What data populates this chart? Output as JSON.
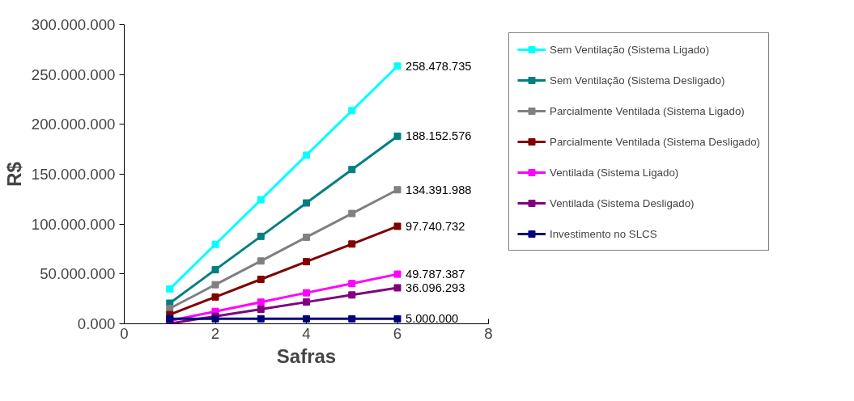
{
  "chart_data": {
    "type": "line",
    "xlabel": "Safras",
    "ylabel": "R$",
    "x": [
      1,
      2,
      3,
      4,
      5,
      6
    ],
    "xlim": [
      0,
      8
    ],
    "xticks": [
      0,
      2,
      4,
      6,
      8
    ],
    "ylim": [
      0,
      300000000
    ],
    "yticks": [
      {
        "value": 0,
        "label": "0.000"
      },
      {
        "value": 50000000,
        "label": "50.000.000"
      },
      {
        "value": 100000000,
        "label": "100.000.000"
      },
      {
        "value": 150000000,
        "label": "150.000.000"
      },
      {
        "value": 200000000,
        "label": "200.000.000"
      },
      {
        "value": 250000000,
        "label": "250.000.000"
      },
      {
        "value": 300000000,
        "label": "300.000.000"
      }
    ],
    "grid": false,
    "legend": "right",
    "marker": "square",
    "line_style": "solid",
    "series": [
      {
        "name": "Sem Ventilação (Sistema Ligado)",
        "color": "#00ffff",
        "values": [
          35000000,
          79700000,
          124400000,
          169100000,
          213800000,
          258478735
        ],
        "value_labels": [
          null,
          null,
          null,
          null,
          null,
          "258.478.735"
        ]
      },
      {
        "name": "Sem Ventilação (Sistema Desligado)",
        "color": "#008080",
        "values": [
          20700000,
          54200000,
          87700000,
          121200000,
          154700000,
          188152576
        ],
        "value_labels": [
          null,
          null,
          null,
          null,
          null,
          "188.152.576"
        ]
      },
      {
        "name": "Parcialmente Ventilada (Sistema Ligado)",
        "color": "#808080",
        "values": [
          15400000,
          39200000,
          63000000,
          86800000,
          110600000,
          134391988
        ],
        "value_labels": [
          null,
          null,
          null,
          null,
          null,
          "134.391.988"
        ]
      },
      {
        "name": "Parcialmente Ventilada (Sistema Desligado)",
        "color": "#800000",
        "values": [
          9200000,
          26900000,
          44600000,
          62300000,
          80000000,
          97740732
        ],
        "value_labels": [
          null,
          null,
          null,
          null,
          null,
          "97.740.732"
        ]
      },
      {
        "name": "Ventilada (Sistema Ligado)",
        "color": "#ff00ff",
        "values": [
          3000000,
          12400000,
          21700000,
          31100000,
          40400000,
          49787387
        ],
        "value_labels": [
          null,
          null,
          null,
          null,
          null,
          "49.787.387"
        ]
      },
      {
        "name": "Ventilada (Sistema Desligado)",
        "color": "#800080",
        "values": [
          300000,
          7500000,
          14600000,
          21800000,
          28900000,
          36096293
        ],
        "value_labels": [
          null,
          null,
          null,
          null,
          null,
          "36.096.293"
        ]
      },
      {
        "name": "Investimento no SLCS",
        "color": "#000080",
        "values": [
          5000000,
          5000000,
          5000000,
          5000000,
          5000000,
          5000000
        ],
        "value_labels": [
          null,
          null,
          null,
          null,
          null,
          "5.000.000"
        ]
      }
    ]
  }
}
